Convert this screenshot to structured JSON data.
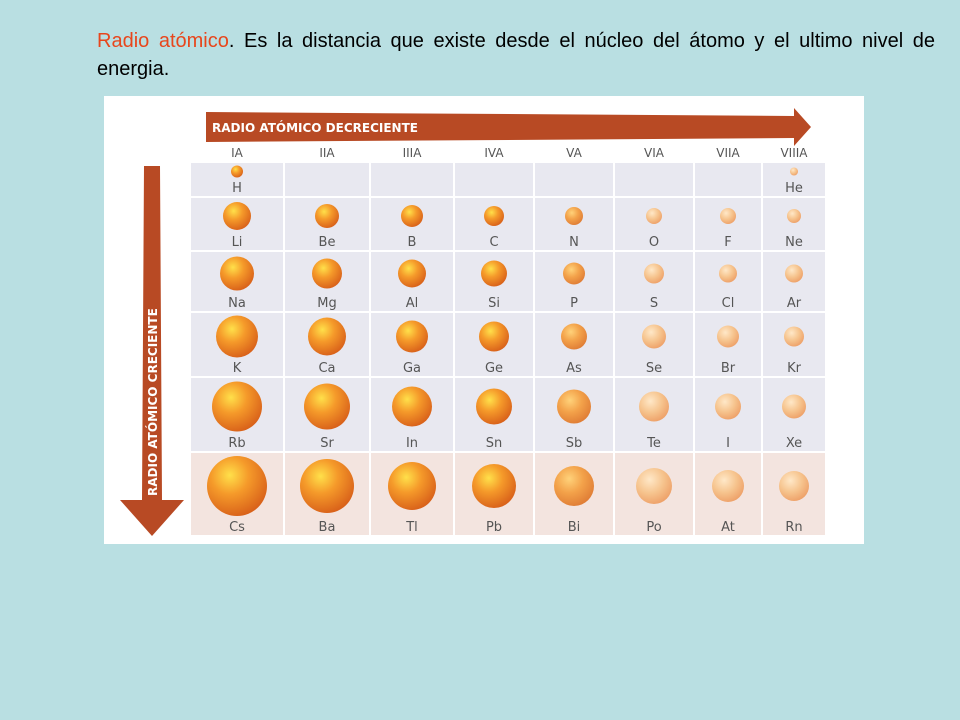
{
  "caption": {
    "term": "Radio atómico",
    "text": ". Es la distancia que existe desde el núcleo del átomo y el ultimo nivel de energia."
  },
  "colors": {
    "background": "#b9dfe2",
    "arrow": "#b84a24",
    "term": "#e8461c",
    "row_light": "#e8e8f0",
    "row_last": "#f3e4df"
  },
  "arrows": {
    "horizontal": "RADIO ATÓMICO DECRECIENTE",
    "vertical": "RADIO ATÓMICO CRECIENTE"
  },
  "groups": [
    "IA",
    "IIA",
    "IIIA",
    "IVA",
    "VA",
    "VIA",
    "VIIA",
    "VIIIA"
  ],
  "rows": [
    [
      {
        "s": "H",
        "r": 6
      },
      null,
      null,
      null,
      null,
      null,
      null,
      {
        "s": "He",
        "r": 4
      }
    ],
    [
      {
        "s": "Li",
        "r": 14
      },
      {
        "s": "Be",
        "r": 12
      },
      {
        "s": "B",
        "r": 11
      },
      {
        "s": "C",
        "r": 10
      },
      {
        "s": "N",
        "r": 9
      },
      {
        "s": "O",
        "r": 8
      },
      {
        "s": "F",
        "r": 8
      },
      {
        "s": "Ne",
        "r": 7
      }
    ],
    [
      {
        "s": "Na",
        "r": 17
      },
      {
        "s": "Mg",
        "r": 15
      },
      {
        "s": "Al",
        "r": 14
      },
      {
        "s": "Si",
        "r": 13
      },
      {
        "s": "P",
        "r": 11
      },
      {
        "s": "S",
        "r": 10
      },
      {
        "s": "Cl",
        "r": 9
      },
      {
        "s": "Ar",
        "r": 9
      }
    ],
    [
      {
        "s": "K",
        "r": 21
      },
      {
        "s": "Ca",
        "r": 19
      },
      {
        "s": "Ga",
        "r": 16
      },
      {
        "s": "Ge",
        "r": 15
      },
      {
        "s": "As",
        "r": 13
      },
      {
        "s": "Se",
        "r": 12
      },
      {
        "s": "Br",
        "r": 11
      },
      {
        "s": "Kr",
        "r": 10
      }
    ],
    [
      {
        "s": "Rb",
        "r": 25
      },
      {
        "s": "Sr",
        "r": 23
      },
      {
        "s": "In",
        "r": 20
      },
      {
        "s": "Sn",
        "r": 18
      },
      {
        "s": "Sb",
        "r": 17
      },
      {
        "s": "Te",
        "r": 15
      },
      {
        "s": "I",
        "r": 13
      },
      {
        "s": "Xe",
        "r": 12
      }
    ],
    [
      {
        "s": "Cs",
        "r": 30
      },
      {
        "s": "Ba",
        "r": 27
      },
      {
        "s": "Tl",
        "r": 24
      },
      {
        "s": "Pb",
        "r": 22
      },
      {
        "s": "Bi",
        "r": 20
      },
      {
        "s": "Po",
        "r": 18
      },
      {
        "s": "At",
        "r": 16
      },
      {
        "s": "Rn",
        "r": 15
      }
    ]
  ]
}
